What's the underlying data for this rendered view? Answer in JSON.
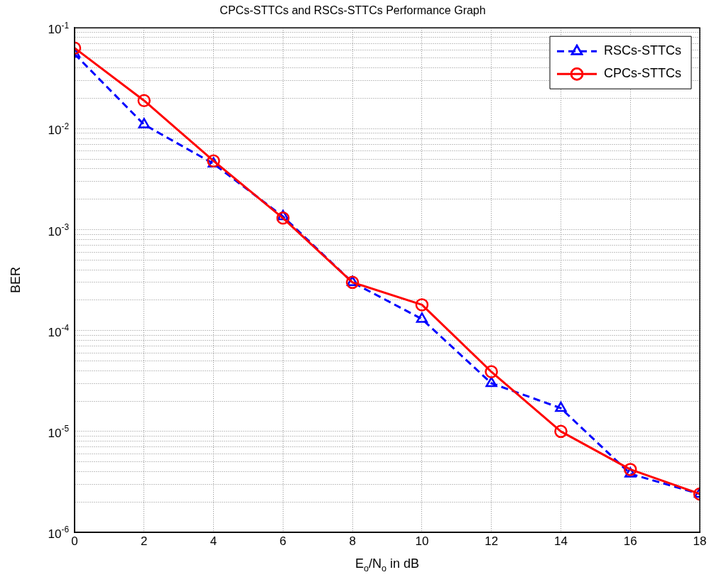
{
  "chart_data": {
    "type": "line",
    "title": "CPCs-STTCs and RSCs-STTCs Performance Graph",
    "xlabel": "E$_{o}$/N$_{o}$ in dB",
    "ylabel": "BER",
    "x": [
      0,
      2,
      4,
      6,
      8,
      10,
      12,
      14,
      16,
      18
    ],
    "series": [
      {
        "name": "RSCs-STTCs",
        "color": "#0000ff",
        "marker": "triangle",
        "line_style": "dashed",
        "values": [
          0.055,
          0.011,
          0.0045,
          0.00135,
          0.0003,
          0.00013,
          3e-05,
          1.7e-05,
          3.8e-06,
          2.4e-06
        ]
      },
      {
        "name": "CPCs-STTCs",
        "color": "#ff0000",
        "marker": "circle",
        "line_style": "solid",
        "values": [
          0.063,
          0.019,
          0.0048,
          0.0013,
          0.0003,
          0.00018,
          3.9e-05,
          1e-05,
          4.2e-06,
          2.4e-06
        ]
      }
    ],
    "log": "y",
    "grid": true,
    "legend": "top right",
    "xlim": [
      0,
      18
    ],
    "xticks": [
      0,
      2,
      4,
      6,
      8,
      10,
      12,
      14,
      16,
      18
    ],
    "ylim": [
      1e-06,
      0.1
    ],
    "yticks": [
      {
        "value": 1e-06,
        "label": "10$^{-6}$"
      },
      {
        "value": 2e-06,
        "label": null
      },
      {
        "value": 3e-06,
        "label": null
      },
      {
        "value": 4e-06,
        "label": null
      },
      {
        "value": 5e-06,
        "label": null
      },
      {
        "value": 6e-06,
        "label": null
      },
      {
        "value": 7e-06,
        "label": null
      },
      {
        "value": 8e-06,
        "label": null
      },
      {
        "value": 9e-06,
        "label": null
      },
      {
        "value": 1e-05,
        "label": "10$^{-5}$"
      },
      {
        "value": 2e-05,
        "label": null
      },
      {
        "value": 3e-05,
        "label": null
      },
      {
        "value": 4e-05,
        "label": null
      },
      {
        "value": 5e-05,
        "label": null
      },
      {
        "value": 6e-05,
        "label": null
      },
      {
        "value": 7e-05,
        "label": null
      },
      {
        "value": 8e-05,
        "label": null
      },
      {
        "value": 9e-05,
        "label": null
      },
      {
        "value": 0.0001,
        "label": "10$^{-4}$"
      },
      {
        "value": 0.0002,
        "label": null
      },
      {
        "value": 0.0003,
        "label": null
      },
      {
        "value": 0.0004,
        "label": null
      },
      {
        "value": 0.0005,
        "label": null
      },
      {
        "value": 0.0006,
        "label": null
      },
      {
        "value": 0.0007,
        "label": null
      },
      {
        "value": 0.0008,
        "label": null
      },
      {
        "value": 0.0009,
        "label": null
      },
      {
        "value": 0.001,
        "label": "10$^{-3}$"
      },
      {
        "value": 0.002,
        "label": null
      },
      {
        "value": 0.003,
        "label": null
      },
      {
        "value": 0.004,
        "label": null
      },
      {
        "value": 0.005,
        "label": null
      },
      {
        "value": 0.006,
        "label": null
      },
      {
        "value": 0.007,
        "label": null
      },
      {
        "value": 0.008,
        "label": null
      },
      {
        "value": 0.009,
        "label": null
      },
      {
        "value": 0.01,
        "label": "10$^{-2}$"
      },
      {
        "value": 0.02,
        "label": null
      },
      {
        "value": 0.03,
        "label": null
      },
      {
        "value": 0.04,
        "label": null
      },
      {
        "value": 0.05,
        "label": null
      },
      {
        "value": 0.06,
        "label": null
      },
      {
        "value": 0.07,
        "label": null
      },
      {
        "value": 0.08,
        "label": null
      },
      {
        "value": 0.09,
        "label": null
      },
      {
        "value": 0.1,
        "label": "10$^{-1}$"
      }
    ]
  }
}
